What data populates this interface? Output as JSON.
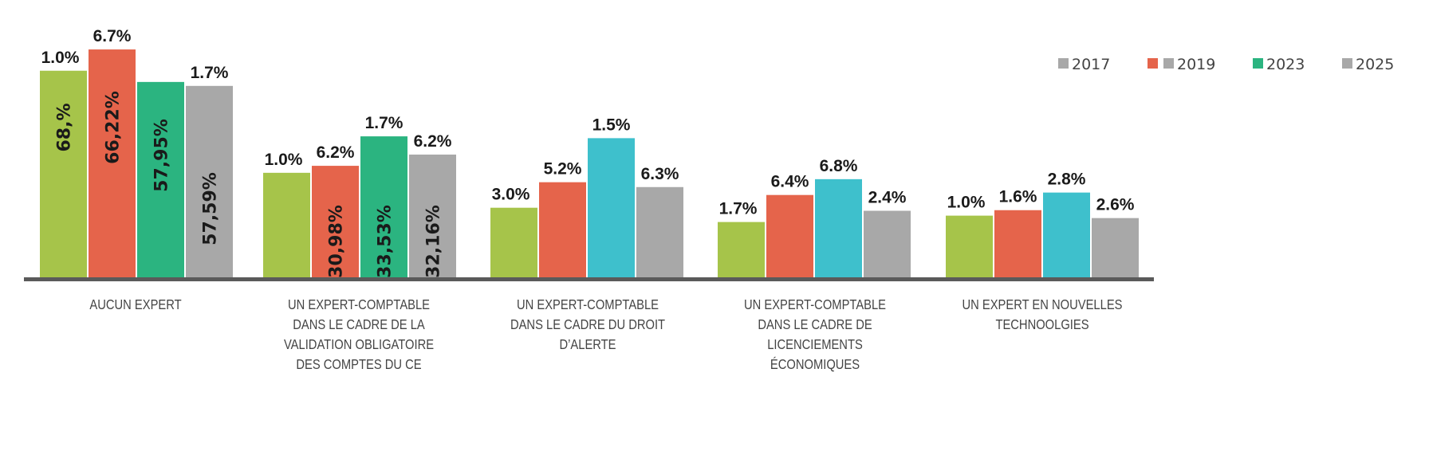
{
  "chart_data": {
    "type": "bar",
    "title": "",
    "xlabel": "",
    "ylabel": "",
    "ylim": [
      0,
      80
    ],
    "grid": false,
    "legend_position": "top-right",
    "legend": [
      {
        "label": "2017",
        "swatches": [
          "#a8a8a8"
        ]
      },
      {
        "label": "2019",
        "swatches": [
          "#e5644b",
          "#a8a8a8"
        ]
      },
      {
        "label": "2023",
        "swatches": [
          "#2bb480"
        ]
      },
      {
        "label": "2025",
        "swatches": [
          "#a8a8a8"
        ]
      }
    ],
    "categories": [
      [
        "AUCUN EXPERT"
      ],
      [
        "UN EXPERT-COMPTABLE",
        "DANS LE CADRE DE LA",
        "VALIDATION OBLIGATOIRE",
        "DES COMPTES DU CE"
      ],
      [
        "UN EXPERT-COMPTABLE",
        "DANS LE CADRE DU DROIT",
        "D’ALERTE"
      ],
      [
        "UN EXPERT-COMPTABLE",
        "DANS LE CADRE DE",
        "LICENCIEMENTS",
        "ÉCONOMIQUES"
      ],
      [
        "UN EXPERT EN NOUVELLES",
        "TECHNOOLGIES"
      ]
    ],
    "series": [
      {
        "name": "2017",
        "colors": [
          "#a6c44a",
          "#a6c44a",
          "#a6c44a",
          "#a6c44a",
          "#a6c44a"
        ],
        "values": [
          68,
          34.4,
          22.9,
          18.2,
          20.3
        ],
        "top_labels": [
          "1.0%",
          "1.0%",
          "3.0%",
          "1.7%",
          "1.0%"
        ],
        "inner_labels": [
          "68,%",
          null,
          null,
          null,
          null
        ]
      },
      {
        "name": "2019",
        "colors": [
          "#e5644b",
          "#e5644b",
          "#e5644b",
          "#e5644b",
          "#e5644b"
        ],
        "values": [
          75.0,
          36.7,
          31.3,
          27.1,
          22.1
        ],
        "top_labels": [
          "6.7%",
          "6.2%",
          "5.2%",
          "6.4%",
          "1.6%"
        ],
        "inner_labels": [
          "66,22%",
          "30,98%",
          null,
          null,
          null
        ]
      },
      {
        "name": "2023",
        "colors": [
          "#2bb480",
          "#2bb480",
          "#3ec0cc",
          "#3ec0cc",
          "#3ec0cc"
        ],
        "values": [
          64.3,
          46.4,
          45.8,
          32.3,
          27.9
        ],
        "top_labels": [
          "",
          "1.7%",
          "1.5%",
          "6.8%",
          "2.8%"
        ],
        "inner_labels": [
          "57,95%",
          "33,53%",
          null,
          null,
          null
        ]
      },
      {
        "name": "2025",
        "colors": [
          "#a8a8a8",
          "#a8a8a8",
          "#a8a8a8",
          "#a8a8a8",
          "#a8a8a8"
        ],
        "values": [
          63.0,
          40.4,
          29.7,
          21.9,
          19.5
        ],
        "top_labels": [
          "1.7%",
          "6.2%",
          "6.3%",
          "2.4%",
          "2.6%"
        ],
        "inner_labels": [
          "57,59%",
          "32,16%",
          null,
          null,
          null
        ]
      }
    ]
  }
}
